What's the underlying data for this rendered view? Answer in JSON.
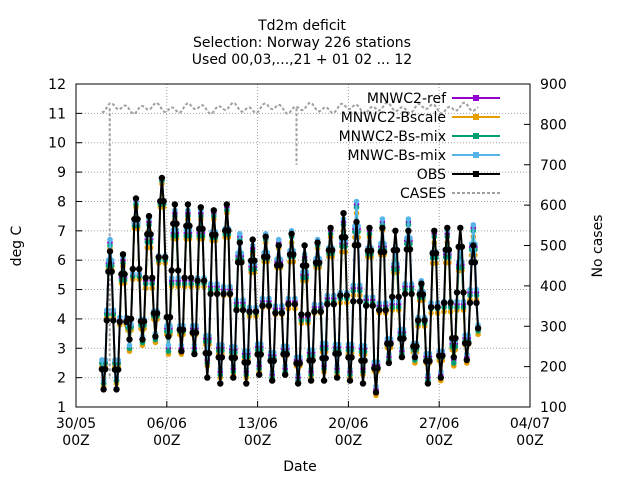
{
  "chart_data": {
    "type": "line",
    "title_lines": [
      "Td2m deficit",
      "Selection: Norway    226 stations",
      "Used 00,03,...,21 + 01 02 ... 12"
    ],
    "xlabel": "Date",
    "ylabel": "deg C",
    "y2label": "No cases",
    "xlim": [
      "2020-05-30 00Z",
      "2020-07-04 00Z"
    ],
    "ylim": [
      1,
      12
    ],
    "y2lim": [
      100,
      900
    ],
    "x_ticks": [
      {
        "line1": "30/05",
        "line2": "00Z",
        "day": 0
      },
      {
        "line1": "06/06",
        "line2": "00Z",
        "day": 7
      },
      {
        "line1": "13/06",
        "line2": "00Z",
        "day": 14
      },
      {
        "line1": "20/06",
        "line2": "00Z",
        "day": 21
      },
      {
        "line1": "27/06",
        "line2": "00Z",
        "day": 28
      },
      {
        "line1": "04/07",
        "line2": "00Z",
        "day": 35
      }
    ],
    "y_ticks": [
      "1",
      "2",
      "3",
      "4",
      "5",
      "6",
      "7",
      "8",
      "9",
      "10",
      "11",
      "12"
    ],
    "y2_ticks": [
      "100",
      "200",
      "300",
      "400",
      "500",
      "600",
      "700",
      "800",
      "900"
    ],
    "grid": true,
    "legend_position": "top-right",
    "period_days": [
      2,
      31
    ],
    "series": [
      {
        "name": "MNWC2-ref",
        "color": "#9400d3",
        "daily_max": [
          6.6,
          6.0,
          8.0,
          7.3,
          8.8,
          7.6,
          7.6,
          7.6,
          7.6,
          7.8,
          6.8,
          6.4,
          6.8,
          6.6,
          6.9,
          6.1,
          6.6,
          7.0,
          7.3,
          7.9,
          7.0,
          7.3,
          6.3,
          7.3,
          5.2,
          6.9,
          6.9,
          6.4,
          7.1,
          8.3,
          6.7,
          8.8,
          8.0,
          6.6,
          6.6
        ],
        "daily_min": [
          1.8,
          1.9,
          3.0,
          3.3,
          3.4,
          3.0,
          3.0,
          3.0,
          2.6,
          2.2,
          2.3,
          2.2,
          2.4,
          2.1,
          2.3,
          2.0,
          2.2,
          2.4,
          2.3,
          2.2,
          2.3,
          1.6,
          2.7,
          2.9,
          2.7,
          2.0,
          2.1,
          2.6,
          2.7,
          2.9,
          2.8,
          2.9,
          2.9,
          2.6,
          2.1
        ]
      },
      {
        "name": "MNWC2-Bscale",
        "color": "#e69f00",
        "daily_max": [
          6.4,
          5.8,
          7.8,
          7.0,
          8.6,
          7.4,
          7.4,
          7.4,
          7.4,
          7.6,
          6.6,
          6.2,
          6.6,
          6.4,
          6.6,
          5.9,
          6.4,
          6.8,
          7.0,
          7.6,
          6.8,
          7.0,
          6.1,
          7.0,
          5.0,
          6.6,
          6.6,
          6.2,
          6.8,
          8.0,
          6.5,
          8.5,
          7.8,
          6.4,
          6.4
        ],
        "daily_min": [
          1.7,
          1.8,
          2.9,
          3.1,
          3.2,
          2.8,
          2.8,
          2.8,
          2.4,
          2.0,
          2.1,
          2.0,
          2.2,
          1.9,
          2.1,
          1.8,
          2.0,
          2.2,
          2.1,
          2.0,
          2.1,
          1.4,
          2.5,
          2.7,
          2.5,
          1.8,
          1.9,
          2.4,
          2.5,
          2.7,
          2.6,
          2.7,
          2.7,
          2.4,
          1.9
        ]
      },
      {
        "name": "MNWC2-Bs-mix",
        "color": "#009e73",
        "daily_max": [
          6.5,
          5.9,
          7.9,
          7.2,
          8.7,
          7.5,
          7.5,
          7.5,
          7.5,
          7.7,
          6.7,
          6.3,
          6.7,
          6.5,
          6.8,
          6.0,
          6.5,
          6.9,
          7.2,
          7.8,
          6.9,
          7.2,
          6.2,
          7.2,
          5.1,
          6.8,
          6.8,
          6.3,
          7.0,
          8.2,
          6.6,
          8.7,
          7.9,
          6.5,
          6.5
        ],
        "daily_min": [
          1.8,
          1.9,
          3.0,
          3.2,
          3.3,
          2.9,
          2.9,
          2.9,
          2.5,
          2.1,
          2.2,
          2.1,
          2.3,
          2.0,
          2.2,
          1.9,
          2.1,
          2.3,
          2.2,
          2.1,
          2.2,
          1.5,
          2.6,
          2.8,
          2.6,
          1.9,
          2.0,
          2.5,
          2.6,
          2.8,
          2.7,
          2.8,
          2.8,
          2.5,
          2.0
        ]
      },
      {
        "name": "MNWC-Bs-mix",
        "color": "#56b4e9",
        "daily_max": [
          6.7,
          6.1,
          8.0,
          7.4,
          8.8,
          7.7,
          7.7,
          7.7,
          7.7,
          7.9,
          6.9,
          6.5,
          6.9,
          6.7,
          7.0,
          6.2,
          6.7,
          7.1,
          7.4,
          8.0,
          7.1,
          7.4,
          6.4,
          7.4,
          5.3,
          7.0,
          7.0,
          6.5,
          7.2,
          8.4,
          6.8,
          8.9,
          8.1,
          6.7,
          6.7
        ],
        "daily_min": [
          1.9,
          2.0,
          3.1,
          3.4,
          3.5,
          3.1,
          3.1,
          3.1,
          2.7,
          2.3,
          2.4,
          2.3,
          2.5,
          2.2,
          2.4,
          2.1,
          2.3,
          2.5,
          2.4,
          2.3,
          2.4,
          1.7,
          2.8,
          3.0,
          2.8,
          2.1,
          2.2,
          2.7,
          2.8,
          3.0,
          2.9,
          3.0,
          3.0,
          2.7,
          2.2
        ]
      },
      {
        "name": "OBS",
        "color": "#000000",
        "daily_max": [
          6.3,
          6.2,
          8.1,
          7.5,
          8.8,
          7.9,
          7.9,
          7.8,
          7.7,
          7.9,
          6.6,
          6.7,
          6.8,
          6.5,
          6.9,
          6.5,
          6.6,
          7.1,
          7.6,
          7.3,
          7.1,
          7.1,
          7.0,
          7.0,
          5.2,
          7.0,
          7.1,
          7.1,
          6.5,
          8.8,
          7.2,
          8.7,
          8.0,
          6.2,
          6.2
        ],
        "daily_min": [
          1.6,
          1.6,
          3.3,
          3.3,
          3.4,
          3.4,
          2.9,
          2.8,
          2.0,
          1.8,
          2.0,
          1.8,
          2.1,
          1.9,
          2.1,
          1.8,
          1.9,
          1.9,
          2.0,
          1.9,
          1.8,
          1.5,
          2.5,
          2.7,
          2.7,
          1.8,
          2.0,
          2.7,
          2.6,
          2.8,
          2.8,
          2.7,
          2.9,
          2.5,
          2.2
        ]
      },
      {
        "name": "CASES",
        "color": "#a0a0a0",
        "axis": "y2",
        "level": 840,
        "low_dips": [
          {
            "day": 2.6,
            "value": 170
          },
          {
            "day": 17.0,
            "value": 700
          }
        ]
      }
    ]
  }
}
